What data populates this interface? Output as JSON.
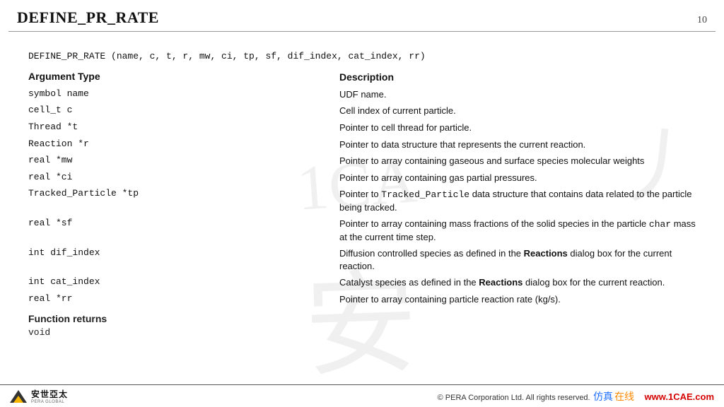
{
  "page": {
    "title": "DEFINE_PR_RATE",
    "number": "10",
    "background_color": "#ffffff",
    "title_font": "Georgia serif",
    "title_fontsize": 22,
    "body_fontsize": 13
  },
  "signature": "DEFINE_PR_RATE (name, c, t, r, mw, ci, tp, sf, dif_index, cat_index, rr)",
  "headers": {
    "arg": "Argument Type",
    "desc": "Description"
  },
  "args": [
    {
      "arg": "symbol name",
      "desc": "UDF name."
    },
    {
      "arg": "cell_t c",
      "desc": "Cell index of current particle."
    },
    {
      "arg": "Thread *t",
      "desc": "Pointer to cell thread for particle."
    },
    {
      "arg": "Reaction *r",
      "desc": "Pointer to data structure that represents the current reaction."
    },
    {
      "arg": "real *mw",
      "desc": "Pointer to array containing gaseous and surface species molecular weights"
    },
    {
      "arg": "real *ci",
      "desc": "Pointer to array containing gas partial pressures."
    },
    {
      "arg": "Tracked_Particle *tp",
      "desc_pre": "Pointer to ",
      "mono": "Tracked_Particle",
      "desc_post": " data structure that contains data related to the particle being tracked."
    },
    {
      "arg": "real *sf",
      "desc_pre": "Pointer to array containing mass fractions of the solid species in the particle ",
      "mono": "char",
      "desc_post": " mass at the current time step."
    },
    {
      "arg": "int dif_index",
      "desc_pre": "Diffusion controlled species as defined in the ",
      "bold": "Reactions",
      "desc_post": " dialog box for the current reaction."
    },
    {
      "arg": "int cat_index",
      "desc_pre": "Catalyst species as defined in the ",
      "bold": "Reactions",
      "desc_post": " dialog box for the current reaction."
    },
    {
      "arg": "real *rr",
      "desc": "Pointer to array containing particle reaction rate (kg/s)."
    }
  ],
  "returns": {
    "header": "Function returns",
    "value": "void"
  },
  "footer": {
    "logo_text": "安世亞太",
    "logo_sub": "PERA GLOBAL",
    "copyright": "©  PERA Corporation Ltd. All rights reserved.",
    "wm_cn_1": "仿真",
    "wm_cn_2": "在线",
    "wm_url": "www.1CAE.com"
  },
  "watermark": {
    "b1": "1CA",
    "b2": "安",
    "b3": "丿"
  },
  "colors": {
    "text": "#111111",
    "rule": "#999999",
    "logo_dark": "#333333",
    "logo_accent": "#f4b400",
    "wm_blue": "#1e6fff",
    "wm_orange": "#ff8a00",
    "wm_red": "#d40000"
  }
}
